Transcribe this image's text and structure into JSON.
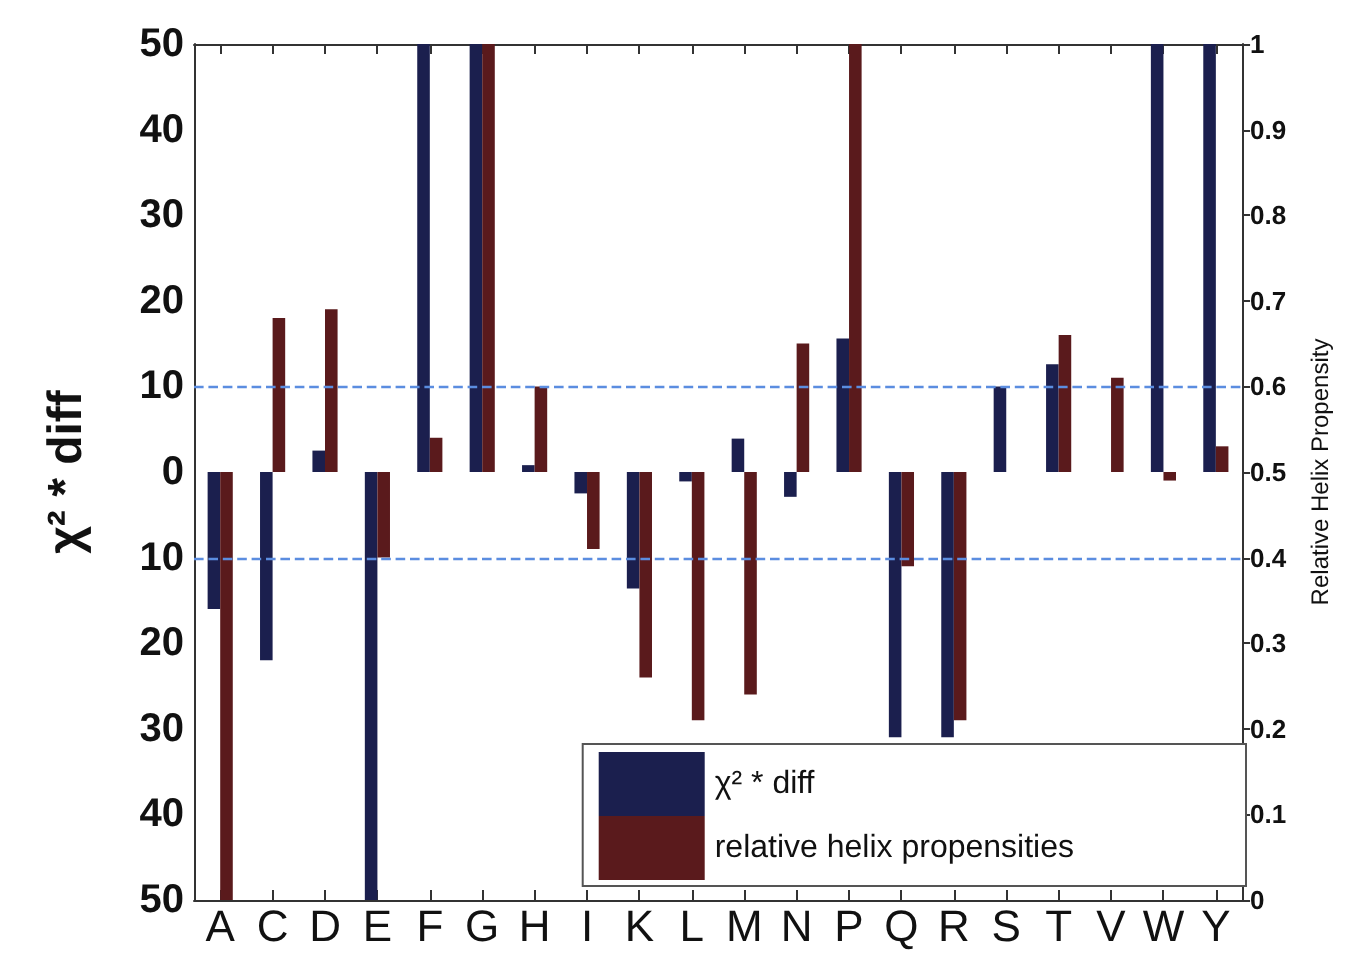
{
  "chart_data": {
    "type": "bar",
    "ylabel": "χ² * diff",
    "y2label": "Relative Helix Propensity",
    "categories": [
      "A",
      "C",
      "D",
      "E",
      "F",
      "G",
      "H",
      "I",
      "K",
      "L",
      "M",
      "N",
      "P",
      "Q",
      "R",
      "S",
      "T",
      "V",
      "W",
      "Y"
    ],
    "series": [
      {
        "name": "χ² * diff",
        "color": "#1b1f4e",
        "values": [
          -16,
          -22,
          2.5,
          -50,
          50,
          50,
          0.8,
          -2.5,
          -13.6,
          -1.1,
          3.9,
          -2.9,
          15.6,
          -31,
          -31,
          10,
          12.6,
          0,
          50,
          50
        ]
      },
      {
        "name": "relative helix propensities",
        "color": "#5a1a1c",
        "axis": "y2",
        "base": [
          0.5,
          0.5,
          0.5,
          0.5,
          0.5,
          0.5,
          0.5,
          0.5,
          0.5,
          0.5,
          0.5,
          0.5,
          0.5,
          0.5,
          0.5,
          null,
          0.5,
          0.5,
          0.5,
          0.5
        ],
        "values": [
          -0.5,
          0.18,
          0.19,
          -0.1,
          0.04,
          0.5,
          0.1,
          -0.09,
          -0.24,
          -0.29,
          -0.26,
          0.15,
          0.5,
          -0.11,
          -0.29,
          null,
          0.16,
          0.11,
          -0.01,
          0.03
        ]
      }
    ],
    "ylim": [
      -50,
      50
    ],
    "yticks": [
      {
        "value": -50,
        "label": "50"
      },
      {
        "value": -40,
        "label": "40"
      },
      {
        "value": -30,
        "label": "30"
      },
      {
        "value": -20,
        "label": "20"
      },
      {
        "value": -10,
        "label": "10"
      },
      0,
      10,
      20,
      30,
      40,
      50
    ],
    "y2lim": [
      0,
      1
    ],
    "y2ticks": [
      0,
      0.1,
      0.2,
      0.3,
      0.4,
      0.5,
      0.6,
      0.7,
      0.8,
      0.9,
      1
    ],
    "ref_lines": [
      {
        "axis": "y",
        "value": 10,
        "color": "#5b8de0",
        "line_style": "dashed"
      },
      {
        "axis": "y",
        "value": -10,
        "color": "#5b8de0",
        "line_style": "dashed"
      }
    ],
    "legend": "bottom right",
    "grid": false
  }
}
